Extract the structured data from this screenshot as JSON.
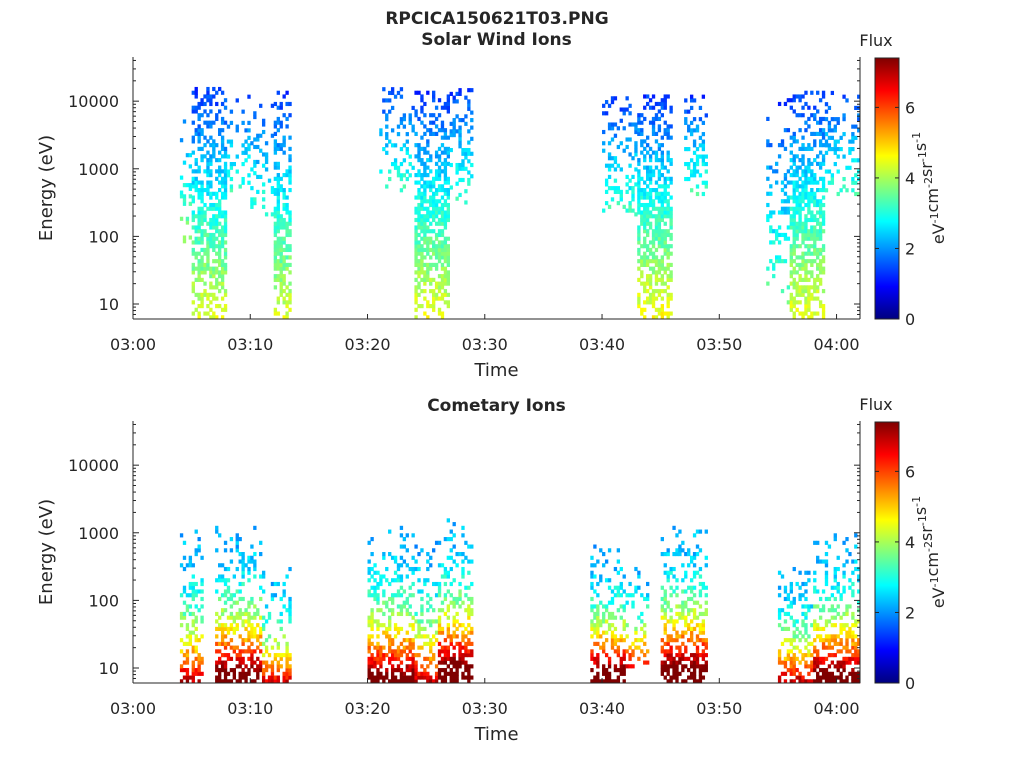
{
  "figure_title": "RPCICA150621T03.PNG",
  "colors": {
    "jet": [
      "#00007f",
      "#0000ff",
      "#007fff",
      "#00ffff",
      "#7fff7f",
      "#ffff00",
      "#ff7f00",
      "#ff0000",
      "#7f0000"
    ],
    "axis": "#262626"
  },
  "chart_data": [
    {
      "type": "heatmap",
      "title": "Solar Wind Ions",
      "xlabel": "Time",
      "ylabel": "Energy (eV)",
      "y_scale": "log",
      "xlim": [
        "03:00",
        "04:02"
      ],
      "ylim": [
        6,
        45000
      ],
      "x_ticks": [
        "03:00",
        "03:10",
        "03:20",
        "03:30",
        "03:40",
        "03:50",
        "04:00"
      ],
      "y_ticks": [
        10,
        100,
        1000,
        10000
      ],
      "y_tick_labels": [
        "10",
        "100",
        "1000",
        "10000"
      ],
      "colorbar": {
        "label": "Flux",
        "unit": "eV-1cm-2sr-1s-1",
        "range": [
          0,
          7.4
        ],
        "ticks": [
          0,
          2,
          4,
          6
        ],
        "tick_labels": [
          "0",
          "2",
          "4",
          "6"
        ]
      },
      "bursts": [
        {
          "start": "03:04",
          "end": "03:05",
          "emin": 80,
          "emax": 15000,
          "peak": 2.3,
          "density": 0.2
        },
        {
          "start": "03:05",
          "end": "03:08",
          "emin": 6,
          "emax": 15000,
          "peak": 2.8,
          "density": 0.55
        },
        {
          "start": "03:08",
          "end": "03:10",
          "emin": 400,
          "emax": 12000,
          "peak": 1.8,
          "density": 0.25
        },
        {
          "start": "03:10",
          "end": "03:12",
          "emin": 200,
          "emax": 10000,
          "peak": 1.8,
          "density": 0.2
        },
        {
          "start": "03:12",
          "end": "03:13:30",
          "emin": 6,
          "emax": 13000,
          "peak": 2.8,
          "density": 0.55
        },
        {
          "start": "03:21",
          "end": "03:24",
          "emin": 400,
          "emax": 16000,
          "peak": 1.8,
          "density": 0.25
        },
        {
          "start": "03:24",
          "end": "03:27",
          "emin": 6,
          "emax": 14000,
          "peak": 2.9,
          "density": 0.6
        },
        {
          "start": "03:27",
          "end": "03:29",
          "emin": 300,
          "emax": 15000,
          "peak": 1.8,
          "density": 0.3
        },
        {
          "start": "03:40",
          "end": "03:43",
          "emin": 200,
          "emax": 11000,
          "peak": 1.8,
          "density": 0.25
        },
        {
          "start": "03:43",
          "end": "03:46",
          "emin": 6,
          "emax": 12000,
          "peak": 3.0,
          "density": 0.6
        },
        {
          "start": "03:47",
          "end": "03:49",
          "emin": 400,
          "emax": 11000,
          "peak": 1.8,
          "density": 0.25
        },
        {
          "start": "03:54",
          "end": "03:56",
          "emin": 10,
          "emax": 10000,
          "peak": 2.0,
          "density": 0.2
        },
        {
          "start": "03:56",
          "end": "03:59",
          "emin": 6,
          "emax": 14000,
          "peak": 2.9,
          "density": 0.6
        },
        {
          "start": "03:59",
          "end": "04:02",
          "emin": 400,
          "emax": 13000,
          "peak": 1.8,
          "density": 0.3
        }
      ]
    },
    {
      "type": "heatmap",
      "title": "Cometary Ions",
      "xlabel": "Time",
      "ylabel": "Energy (eV)",
      "y_scale": "log",
      "xlim": [
        "03:00",
        "04:02"
      ],
      "ylim": [
        6,
        45000
      ],
      "x_ticks": [
        "03:00",
        "03:10",
        "03:20",
        "03:30",
        "03:40",
        "03:50",
        "04:00"
      ],
      "y_ticks": [
        10,
        100,
        1000,
        10000
      ],
      "y_tick_labels": [
        "10",
        "100",
        "1000",
        "10000"
      ],
      "colorbar": {
        "label": "Flux",
        "unit": "eV-1cm-2sr-1s-1",
        "range": [
          0,
          7.4
        ],
        "ticks": [
          0,
          2,
          4,
          6
        ],
        "tick_labels": [
          "0",
          "2",
          "4",
          "6"
        ]
      },
      "bursts": [
        {
          "start": "03:04",
          "end": "03:06",
          "emin": 6,
          "emax": 1000,
          "peak": 4.8,
          "density": 0.45
        },
        {
          "start": "03:07",
          "end": "03:11",
          "emin": 6,
          "emax": 1200,
          "peak": 6.2,
          "density": 0.55
        },
        {
          "start": "03:11",
          "end": "03:13:30",
          "emin": 6,
          "emax": 300,
          "peak": 4.5,
          "density": 0.45
        },
        {
          "start": "03:20",
          "end": "03:24",
          "emin": 6,
          "emax": 1200,
          "peak": 5.8,
          "density": 0.55
        },
        {
          "start": "03:24",
          "end": "03:26",
          "emin": 6,
          "emax": 800,
          "peak": 4.8,
          "density": 0.45
        },
        {
          "start": "03:26",
          "end": "03:29",
          "emin": 6,
          "emax": 1500,
          "peak": 6.8,
          "density": 0.55
        },
        {
          "start": "03:39",
          "end": "03:42",
          "emin": 6,
          "emax": 600,
          "peak": 6.5,
          "density": 0.55
        },
        {
          "start": "03:42",
          "end": "03:44",
          "emin": 10,
          "emax": 400,
          "peak": 4.5,
          "density": 0.4
        },
        {
          "start": "03:45",
          "end": "03:49",
          "emin": 6,
          "emax": 1200,
          "peak": 6.8,
          "density": 0.55
        },
        {
          "start": "03:55",
          "end": "03:58",
          "emin": 6,
          "emax": 300,
          "peak": 4.8,
          "density": 0.5
        },
        {
          "start": "03:58",
          "end": "04:02",
          "emin": 6,
          "emax": 900,
          "peak": 6.2,
          "density": 0.55
        }
      ]
    }
  ]
}
